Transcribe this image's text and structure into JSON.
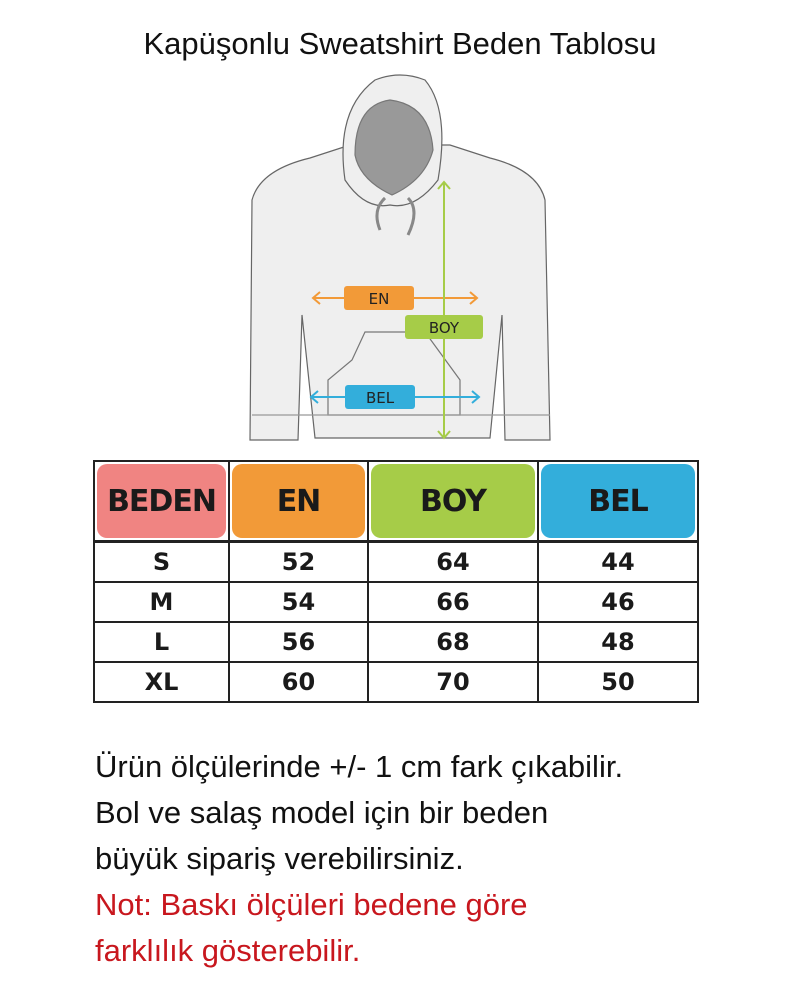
{
  "title": "Kapüşonlu Sweatshirt Beden Tablosu",
  "diagram": {
    "labels": {
      "en": "EN",
      "boy": "BOY",
      "bel": "BEL"
    },
    "colors": {
      "en": "#f29a38",
      "boy": "#a6cc48",
      "bel": "#33aedb"
    }
  },
  "table": {
    "headers": [
      "BEDEN",
      "EN",
      "BOY",
      "BEL"
    ],
    "header_colors": [
      "#f08482",
      "#f29a38",
      "#a6cc48",
      "#33aedb"
    ],
    "rows": [
      [
        "S",
        "52",
        "64",
        "44"
      ],
      [
        "M",
        "54",
        "66",
        "46"
      ],
      [
        "L",
        "56",
        "68",
        "48"
      ],
      [
        "XL",
        "60",
        "70",
        "50"
      ]
    ]
  },
  "notes": {
    "line1": "Ürün ölçülerinde +/- 1 cm fark çıkabilir.",
    "line2": "Bol ve salaş model için bir beden",
    "line3": "büyük sipariş verebilirsiniz.",
    "warning1": "Not: Baskı ölçüleri bedene göre",
    "warning2": "farklılık gösterebilir."
  }
}
